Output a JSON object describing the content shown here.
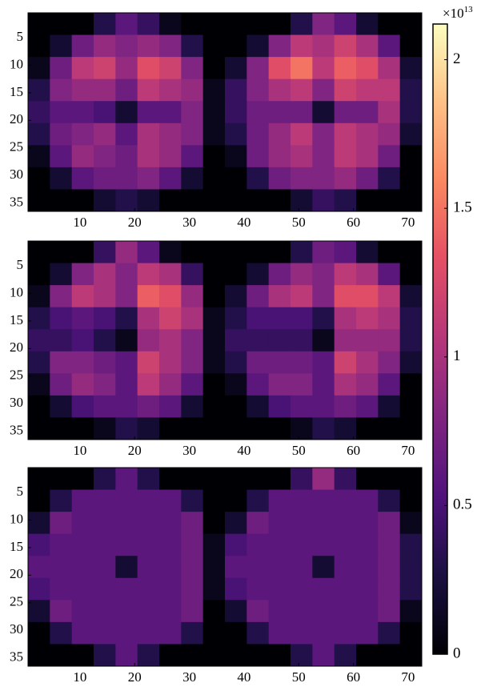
{
  "chart_data": [
    {
      "type": "heatmap",
      "xlim": [
        0.5,
        72.5
      ],
      "ylim": [
        36.5,
        0.5
      ],
      "xticks": [
        10,
        20,
        30,
        40,
        50,
        60,
        70
      ],
      "yticks": [
        5,
        10,
        15,
        20,
        25,
        30,
        35
      ],
      "z": [
        [
          0,
          0,
          0,
          0.3,
          0.6,
          0.4,
          0.1,
          0,
          0,
          0,
          0,
          0,
          0.3,
          0.8,
          0.6,
          0.2,
          0,
          0
        ],
        [
          0,
          0.2,
          0.7,
          0.9,
          0.8,
          0.9,
          0.8,
          0.3,
          0,
          0,
          0.2,
          0.8,
          1.1,
          1.0,
          1.2,
          1.0,
          0.6,
          0
        ],
        [
          0.1,
          0.7,
          1.1,
          1.2,
          0.9,
          1.3,
          1.2,
          0.8,
          0,
          0.2,
          0.8,
          1.3,
          1.5,
          1.1,
          1.4,
          1.3,
          1.0,
          0.2
        ],
        [
          0.3,
          0.8,
          0.9,
          0.9,
          0.7,
          1.1,
          1.0,
          0.9,
          0.1,
          0.4,
          0.8,
          1.0,
          1.1,
          0.8,
          1.2,
          1.1,
          1.1,
          0.3
        ],
        [
          0.4,
          0.6,
          0.6,
          0.5,
          0.2,
          0.6,
          0.6,
          0.8,
          0.1,
          0.4,
          0.7,
          0.7,
          0.7,
          0.2,
          0.7,
          0.7,
          1.0,
          0.3
        ],
        [
          0.3,
          0.7,
          0.8,
          0.9,
          0.6,
          1.0,
          0.9,
          0.8,
          0.1,
          0.3,
          0.7,
          0.9,
          1.1,
          0.8,
          1.1,
          1.0,
          0.9,
          0.2
        ],
        [
          0.1,
          0.6,
          0.9,
          0.8,
          0.7,
          1.0,
          0.9,
          0.6,
          0,
          0.1,
          0.7,
          0.9,
          1.0,
          0.8,
          1.1,
          1.0,
          0.7,
          0
        ],
        [
          0,
          0.2,
          0.6,
          0.7,
          0.7,
          0.8,
          0.6,
          0.2,
          0,
          0,
          0.3,
          0.7,
          0.8,
          0.8,
          0.9,
          0.7,
          0.3,
          0
        ],
        [
          0,
          0,
          0,
          0.2,
          0.3,
          0.2,
          0,
          0,
          0,
          0,
          0,
          0,
          0.2,
          0.4,
          0.3,
          0,
          0,
          0
        ]
      ]
    },
    {
      "type": "heatmap",
      "xlim": [
        0.5,
        72.5
      ],
      "ylim": [
        36.5,
        0.5
      ],
      "xticks": [
        10,
        20,
        30,
        40,
        50,
        60,
        70
      ],
      "yticks": [
        5,
        10,
        15,
        20,
        25,
        30,
        35
      ],
      "z": [
        [
          0,
          0,
          0,
          0.4,
          0.9,
          0.6,
          0.1,
          0,
          0,
          0,
          0,
          0,
          0.3,
          0.7,
          0.6,
          0.2,
          0,
          0
        ],
        [
          0,
          0.2,
          0.8,
          1.0,
          0.8,
          1.1,
          1.0,
          0.4,
          0,
          0,
          0.2,
          0.7,
          0.9,
          0.8,
          1.1,
          1.0,
          0.6,
          0
        ],
        [
          0.1,
          0.8,
          1.1,
          1.0,
          0.8,
          1.4,
          1.3,
          0.9,
          0,
          0.2,
          0.7,
          1.0,
          1.1,
          0.8,
          1.3,
          1.3,
          1.1,
          0.2
        ],
        [
          0.3,
          0.5,
          0.6,
          0.5,
          0.3,
          1.0,
          1.2,
          1.0,
          0.1,
          0.3,
          0.5,
          0.5,
          0.5,
          0.3,
          1.0,
          1.1,
          1.0,
          0.3
        ],
        [
          0.4,
          0.4,
          0.5,
          0.3,
          0.1,
          0.9,
          1.0,
          0.8,
          0.1,
          0.4,
          0.4,
          0.4,
          0.4,
          0.1,
          0.9,
          0.9,
          0.9,
          0.3
        ],
        [
          0.3,
          0.8,
          0.8,
          0.7,
          0.6,
          1.2,
          1.0,
          0.8,
          0.1,
          0.3,
          0.7,
          0.7,
          0.7,
          0.6,
          1.2,
          1.0,
          0.8,
          0.2
        ],
        [
          0.1,
          0.7,
          0.9,
          0.8,
          0.6,
          1.1,
          0.9,
          0.6,
          0,
          0.1,
          0.6,
          0.8,
          0.8,
          0.6,
          1.0,
          0.9,
          0.6,
          0
        ],
        [
          0,
          0.2,
          0.5,
          0.6,
          0.6,
          0.7,
          0.6,
          0.2,
          0,
          0,
          0.2,
          0.5,
          0.6,
          0.6,
          0.7,
          0.6,
          0.2,
          0
        ],
        [
          0,
          0,
          0,
          0.1,
          0.3,
          0.2,
          0,
          0,
          0,
          0,
          0,
          0,
          0.1,
          0.3,
          0.2,
          0,
          0,
          0
        ]
      ]
    },
    {
      "type": "heatmap",
      "xlim": [
        0.5,
        72.5
      ],
      "ylim": [
        36.5,
        0.5
      ],
      "xticks": [
        10,
        20,
        30,
        40,
        50,
        60,
        70
      ],
      "yticks": [
        5,
        10,
        15,
        20,
        25,
        30,
        35
      ],
      "z": [
        [
          0,
          0,
          0,
          0.3,
          0.6,
          0.3,
          0,
          0,
          0,
          0,
          0,
          0,
          0.4,
          0.9,
          0.4,
          0,
          0,
          0
        ],
        [
          0,
          0.3,
          0.6,
          0.6,
          0.6,
          0.6,
          0.6,
          0.3,
          0,
          0,
          0.3,
          0.6,
          0.6,
          0.6,
          0.6,
          0.6,
          0.3,
          0
        ],
        [
          0.2,
          0.7,
          0.6,
          0.6,
          0.6,
          0.6,
          0.6,
          0.7,
          0,
          0.2,
          0.7,
          0.6,
          0.6,
          0.6,
          0.6,
          0.6,
          0.7,
          0.1
        ],
        [
          0.5,
          0.6,
          0.6,
          0.6,
          0.6,
          0.6,
          0.6,
          0.7,
          0.1,
          0.5,
          0.6,
          0.6,
          0.6,
          0.6,
          0.6,
          0.6,
          0.7,
          0.3
        ],
        [
          0.6,
          0.6,
          0.6,
          0.6,
          0.2,
          0.6,
          0.6,
          0.7,
          0.1,
          0.6,
          0.6,
          0.6,
          0.6,
          0.2,
          0.6,
          0.6,
          0.7,
          0.3
        ],
        [
          0.5,
          0.6,
          0.6,
          0.6,
          0.6,
          0.6,
          0.6,
          0.7,
          0.1,
          0.5,
          0.6,
          0.6,
          0.6,
          0.6,
          0.6,
          0.6,
          0.7,
          0.3
        ],
        [
          0.2,
          0.7,
          0.6,
          0.6,
          0.6,
          0.6,
          0.6,
          0.7,
          0,
          0.2,
          0.7,
          0.6,
          0.6,
          0.6,
          0.6,
          0.6,
          0.7,
          0.1
        ],
        [
          0,
          0.3,
          0.6,
          0.6,
          0.6,
          0.6,
          0.6,
          0.3,
          0,
          0,
          0.3,
          0.6,
          0.6,
          0.6,
          0.6,
          0.6,
          0.3,
          0
        ],
        [
          0,
          0,
          0,
          0.3,
          0.6,
          0.3,
          0,
          0,
          0,
          0,
          0,
          0,
          0.3,
          0.6,
          0.3,
          0,
          0,
          0
        ]
      ]
    }
  ],
  "colorbar": {
    "colormap": "magma",
    "lim": [
      0,
      2.12
    ],
    "ticks": [
      0,
      0.5,
      1,
      1.5,
      2
    ],
    "offset": "×10",
    "exponent": "13"
  }
}
